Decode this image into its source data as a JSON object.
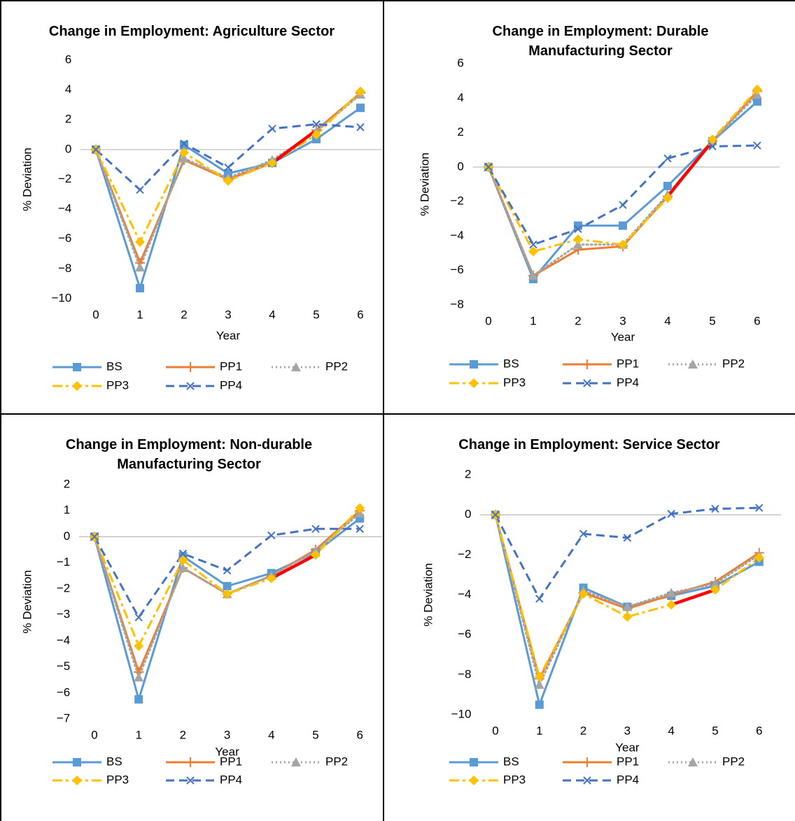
{
  "chart_data": [
    {
      "type": "line",
      "title": "Change in Employment: Agriculture Sector",
      "x_label": "Year",
      "y_label": "% Deviation",
      "x": [
        0,
        1,
        2,
        3,
        4,
        5,
        6
      ],
      "xticks": [
        0,
        1,
        2,
        3,
        4,
        5,
        6
      ],
      "ylim": [
        -10,
        6
      ],
      "yticks": [
        {
          "value": -10,
          "label": "−10"
        },
        {
          "value": -8,
          "label": "−8"
        },
        {
          "value": -6,
          "label": "−6"
        },
        {
          "value": -4,
          "label": "−4"
        },
        {
          "value": -2,
          "label": "−2"
        },
        0,
        2,
        4,
        6
      ],
      "series": [
        {
          "name": "BS",
          "color": "#5b9bd5",
          "style": "solid",
          "marker": "square",
          "values": [
            0,
            -9.3,
            0.3,
            -1.6,
            -0.9,
            0.7,
            2.8
          ]
        },
        {
          "name": "PP1",
          "color": "#ed7d31",
          "style": "solid",
          "marker": "plus",
          "values": [
            0,
            -7.6,
            -0.7,
            -2.0,
            -0.9,
            1.3,
            3.8
          ]
        },
        {
          "name": "PP2",
          "color": "#a5a5a5",
          "style": "dotted",
          "marker": "triangle",
          "values": [
            0,
            -7.9,
            -0.6,
            -1.9,
            -0.7,
            1.2,
            3.7
          ]
        },
        {
          "name": "PP3",
          "color": "#ffc000",
          "style": "dashdot",
          "marker": "diamond",
          "values": [
            0,
            -6.2,
            -0.2,
            -2.1,
            -0.9,
            1.0,
            3.9
          ]
        },
        {
          "name": "PP4",
          "color": "#4472c4",
          "style": "dashed",
          "marker": "x",
          "values": [
            0,
            -2.7,
            0.4,
            -1.2,
            1.4,
            1.7,
            1.5
          ]
        }
      ],
      "highlight": {
        "series": "PP1",
        "x": [
          4,
          5
        ],
        "color": "#ff0000"
      }
    },
    {
      "type": "line",
      "title": "Change in Employment: Durable Manufacturing Sector",
      "x_label": "Year",
      "y_label": "% Deviation",
      "x": [
        0,
        1,
        2,
        3,
        4,
        5,
        6
      ],
      "xticks": [
        0,
        1,
        2,
        3,
        4,
        5,
        6
      ],
      "ylim": [
        -8,
        6
      ],
      "yticks": [
        {
          "value": -8,
          "label": "−8"
        },
        {
          "value": -6,
          "label": "−6"
        },
        {
          "value": -4,
          "label": "−4"
        },
        {
          "value": -2,
          "label": "−2"
        },
        0,
        2,
        4,
        6
      ],
      "series": [
        {
          "name": "BS",
          "color": "#5b9bd5",
          "style": "solid",
          "marker": "square",
          "values": [
            0,
            -6.5,
            -3.4,
            -3.4,
            -1.1,
            1.5,
            3.8
          ]
        },
        {
          "name": "PP1",
          "color": "#ed7d31",
          "style": "solid",
          "marker": "plus",
          "values": [
            0,
            -6.3,
            -4.8,
            -4.6,
            -1.7,
            1.5,
            4.4
          ]
        },
        {
          "name": "PP2",
          "color": "#a5a5a5",
          "style": "dotted",
          "marker": "triangle",
          "values": [
            0,
            -6.3,
            -4.5,
            -4.5,
            -1.6,
            1.5,
            4.2
          ]
        },
        {
          "name": "PP3",
          "color": "#ffc000",
          "style": "dashdot",
          "marker": "diamond",
          "values": [
            0,
            -4.9,
            -4.2,
            -4.5,
            -1.8,
            1.6,
            4.5
          ]
        },
        {
          "name": "PP4",
          "color": "#4472c4",
          "style": "dashed",
          "marker": "x",
          "values": [
            0,
            -4.5,
            -3.6,
            -2.2,
            0.5,
            1.2,
            1.25
          ]
        }
      ],
      "highlight": {
        "series": "PP1",
        "x": [
          4,
          5
        ],
        "color": "#ff0000"
      }
    },
    {
      "type": "line",
      "title": "Change in Employment: Non-durable Manufacturing Sector",
      "x_label": "Year",
      "y_label": "% Deviation",
      "x": [
        0,
        1,
        2,
        3,
        4,
        5,
        6
      ],
      "xticks": [
        0,
        1,
        2,
        3,
        4,
        5,
        6
      ],
      "ylim": [
        -7,
        2
      ],
      "yticks": [
        {
          "value": -7,
          "label": "−7"
        },
        {
          "value": -6,
          "label": "−6"
        },
        {
          "value": -5,
          "label": "−5"
        },
        {
          "value": -4,
          "label": "−4"
        },
        {
          "value": -3,
          "label": "−3"
        },
        {
          "value": -2,
          "label": "−2"
        },
        {
          "value": -1,
          "label": "−1"
        },
        0,
        1,
        2
      ],
      "series": [
        {
          "name": "BS",
          "color": "#5b9bd5",
          "style": "solid",
          "marker": "square",
          "values": [
            0,
            -6.25,
            -0.75,
            -1.9,
            -1.4,
            -0.6,
            0.7
          ]
        },
        {
          "name": "PP1",
          "color": "#ed7d31",
          "style": "solid",
          "marker": "plus",
          "values": [
            0,
            -5.2,
            -1.2,
            -2.2,
            -1.5,
            -0.5,
            1.0
          ]
        },
        {
          "name": "PP2",
          "color": "#a5a5a5",
          "style": "dotted",
          "marker": "triangle",
          "values": [
            0,
            -5.4,
            -1.2,
            -2.2,
            -1.5,
            -0.55,
            0.9
          ]
        },
        {
          "name": "PP3",
          "color": "#ffc000",
          "style": "dashdot",
          "marker": "diamond",
          "values": [
            0,
            -4.2,
            -0.9,
            -2.2,
            -1.6,
            -0.7,
            1.1
          ]
        },
        {
          "name": "PP4",
          "color": "#4472c4",
          "style": "dashed",
          "marker": "x",
          "values": [
            0,
            -3.1,
            -0.65,
            -1.3,
            0.05,
            0.3,
            0.3
          ]
        }
      ],
      "highlight": {
        "series": "PP3",
        "x": [
          4,
          5
        ],
        "color": "#ff0000"
      }
    },
    {
      "type": "line",
      "title": "Change in Employment: Service Sector",
      "x_label": "Year",
      "y_label": "% Deviation",
      "x": [
        0,
        1,
        2,
        3,
        4,
        5,
        6
      ],
      "xticks": [
        0,
        1,
        2,
        3,
        4,
        5,
        6
      ],
      "ylim": [
        -10,
        2
      ],
      "yticks": [
        {
          "value": -10,
          "label": "−10"
        },
        {
          "value": -8,
          "label": "−8"
        },
        {
          "value": -6,
          "label": "−6"
        },
        {
          "value": -4,
          "label": "−4"
        },
        {
          "value": -2,
          "label": "−2"
        },
        0,
        2
      ],
      "series": [
        {
          "name": "BS",
          "color": "#5b9bd5",
          "style": "solid",
          "marker": "square",
          "values": [
            0,
            -9.5,
            -3.65,
            -4.6,
            -4.05,
            -3.55,
            -2.35
          ]
        },
        {
          "name": "PP1",
          "color": "#ed7d31",
          "style": "solid",
          "marker": "plus",
          "values": [
            0,
            -8.2,
            -3.9,
            -4.7,
            -4.0,
            -3.35,
            -1.9
          ]
        },
        {
          "name": "PP2",
          "color": "#a5a5a5",
          "style": "dotted",
          "marker": "triangle",
          "values": [
            0,
            -8.5,
            -3.8,
            -4.6,
            -3.9,
            -3.45,
            -2.0
          ]
        },
        {
          "name": "PP3",
          "color": "#ffc000",
          "style": "dashdot",
          "marker": "diamond",
          "values": [
            0,
            -8.1,
            -3.95,
            -5.1,
            -4.5,
            -3.75,
            -2.15
          ]
        },
        {
          "name": "PP4",
          "color": "#4472c4",
          "style": "dashed",
          "marker": "x",
          "values": [
            0,
            -4.2,
            -0.95,
            -1.15,
            0.05,
            0.3,
            0.35
          ]
        }
      ],
      "highlight": {
        "series": "PP3",
        "x": [
          4,
          5
        ],
        "color": "#ff0000"
      }
    }
  ]
}
